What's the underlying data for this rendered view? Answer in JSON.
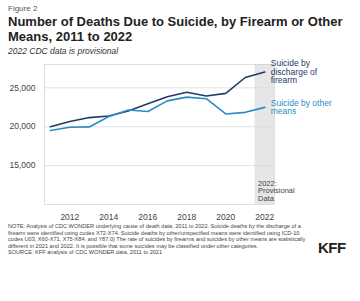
{
  "chart_data": {
    "type": "line",
    "figure_label": "Figure 2",
    "title": "Number of Deaths Due to Suicide, by Firearm or Other Means, 2011 to 2022",
    "subtitle": "2022 CDC data is provisional",
    "x": [
      2011,
      2012,
      2013,
      2014,
      2015,
      2016,
      2017,
      2018,
      2019,
      2020,
      2021,
      2022
    ],
    "series": [
      {
        "name": "Suicide by discharge of firearm",
        "color": "#1f3a6e",
        "values": [
          19990,
          20666,
          21175,
          21386,
          22018,
          22938,
          23854,
          24432,
          23941,
          24292,
          26328,
          27032
        ]
      },
      {
        "name": "Suicide by other means",
        "color": "#2b8cc4",
        "values": [
          19513,
          19934,
          19974,
          21307,
          22155,
          21964,
          23319,
          23808,
          23605,
          21638,
          21848,
          22488
        ]
      }
    ],
    "xlim": [
      2010.7,
      2022.5
    ],
    "xticks": [
      2012,
      2014,
      2016,
      2018,
      2020,
      2022
    ],
    "ylim": [
      10000,
      28000
    ],
    "yticks": [
      {
        "value": 15000,
        "label": "15,000"
      },
      {
        "value": 20000,
        "label": "20,000"
      },
      {
        "value": 25000,
        "label": "25,000"
      }
    ],
    "grid": true,
    "annotations": [
      {
        "x1": 2021.5,
        "x2": 2022.5,
        "label": "2022: Provisional Data",
        "color": "#e6e6e6"
      }
    ],
    "notes": "NOTE: Analysis of CDC WONDER underlying cause of death data, 2011 to 2022. Suicide deaths by the discharge of a firearm were identified using codes X72-X74. Suicide deaths by other/unspecified means were identified using ICD-10 codes U03, X60-X71, X75-X84, and Y87.0) The rate of suicides by firearms and suicides by other means are statistically different in 2021 and 2022. It is possible that some suicides may be classified under other categories.",
    "source": "SOURCE: KFF analysis of CDC WONDER data, 2011 to 2021",
    "logo": "KFF"
  }
}
